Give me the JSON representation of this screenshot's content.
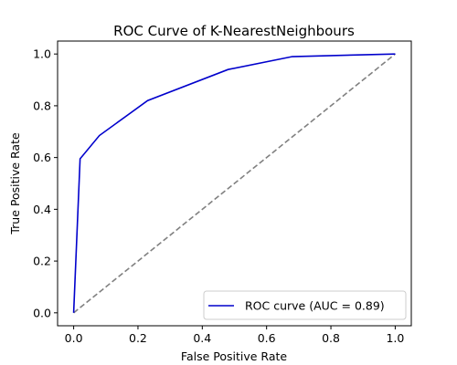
{
  "chart_data": {
    "type": "line",
    "title": "ROC Curve of K-NearestNeighbours",
    "xlabel": "False Positive Rate",
    "ylabel": "True Positive Rate",
    "xlim": [
      -0.05,
      1.05
    ],
    "ylim": [
      -0.05,
      1.05
    ],
    "xticks": [
      "0.0",
      "0.2",
      "0.4",
      "0.6",
      "0.8",
      "1.0"
    ],
    "yticks": [
      "0.0",
      "0.2",
      "0.4",
      "0.6",
      "0.8",
      "1.0"
    ],
    "grid": false,
    "legend_position": "lower-right",
    "series": [
      {
        "name": "ROC curve (AUC = 0.89)",
        "color": "#0000cc",
        "style": "solid",
        "x": [
          0.0,
          0.02,
          0.08,
          0.23,
          0.48,
          0.68,
          1.0
        ],
        "y": [
          0.0,
          0.595,
          0.685,
          0.82,
          0.94,
          0.99,
          1.0
        ]
      },
      {
        "color": "#808080",
        "style": "dashed",
        "x": [
          0.0,
          1.0
        ],
        "y": [
          0.0,
          1.0
        ]
      }
    ]
  }
}
